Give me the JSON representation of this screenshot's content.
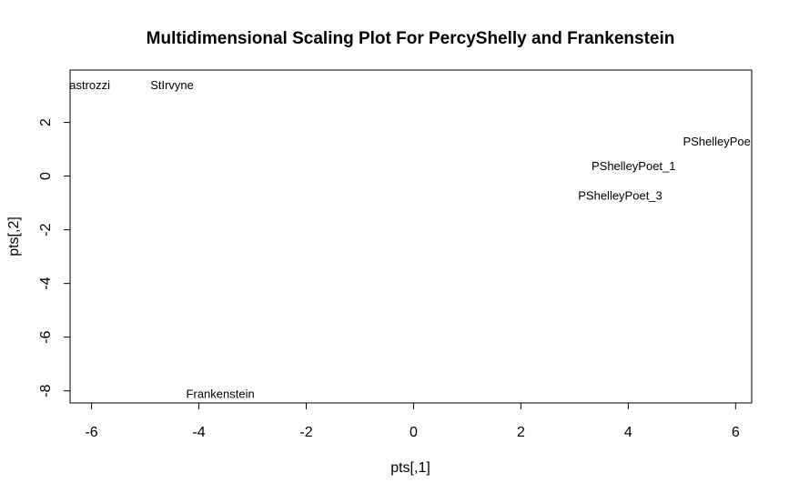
{
  "chart_data": {
    "type": "scatter",
    "title": "Multidimensional Scaling Plot For PercyShelly and Frankenstein",
    "xlabel": "pts[,1]",
    "ylabel": "pts[,2]",
    "xlim": [
      -6.4,
      6.3
    ],
    "ylim": [
      -8.45,
      3.95
    ],
    "xticks": [
      -6,
      -4,
      -2,
      0,
      2,
      4,
      6
    ],
    "yticks": [
      -8,
      -6,
      -4,
      -2,
      0,
      2
    ],
    "points": [
      {
        "label": "Zastrozzi",
        "x": -6.1,
        "y": 3.4
      },
      {
        "label": "StIrvyne",
        "x": -4.5,
        "y": 3.4
      },
      {
        "label": "PShelleyPoe",
        "x": 5.65,
        "y": 1.3
      },
      {
        "label": "PShelleyPoet_1",
        "x": 4.1,
        "y": 0.4
      },
      {
        "label": "PShelleyPoet_3",
        "x": 3.85,
        "y": -0.7
      },
      {
        "label": "Frankenstein",
        "x": -3.6,
        "y": -8.1
      }
    ]
  }
}
